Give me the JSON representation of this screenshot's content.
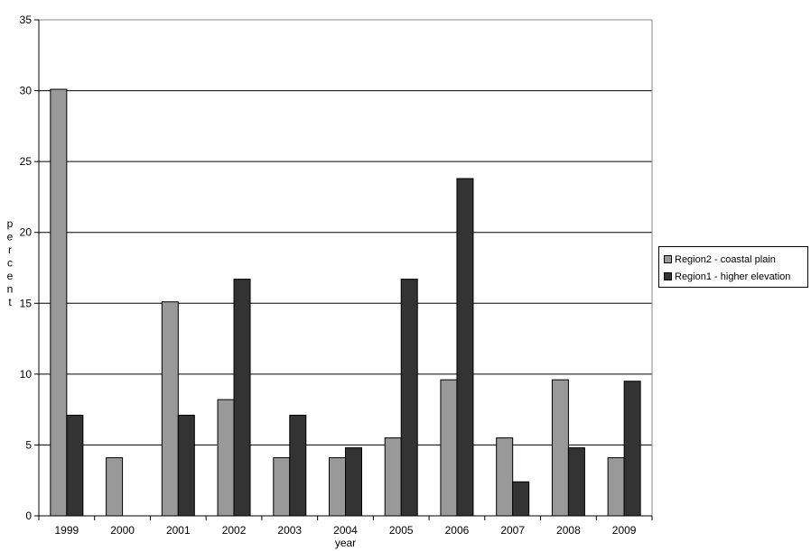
{
  "chart_data": {
    "type": "bar",
    "categories": [
      "1999",
      "2000",
      "2001",
      "2002",
      "2003",
      "2004",
      "2005",
      "2006",
      "2007",
      "2008",
      "2009"
    ],
    "series": [
      {
        "name": "Region2 - coastal plain",
        "color": "#999999",
        "values": [
          30.1,
          4.1,
          15.1,
          8.2,
          4.1,
          4.1,
          5.5,
          9.6,
          5.5,
          9.6,
          4.1
        ]
      },
      {
        "name": "Region1 - higher elevation",
        "color": "#333333",
        "values": [
          7.1,
          0,
          7.1,
          16.7,
          7.1,
          4.8,
          16.7,
          23.8,
          2.4,
          4.8,
          9.5
        ]
      }
    ],
    "xlabel": "year",
    "ylabel": "percent",
    "ylim": [
      0,
      35
    ],
    "yticks": [
      0,
      5,
      10,
      15,
      20,
      25,
      30,
      35
    ],
    "grid": true,
    "legend_position": "right"
  }
}
